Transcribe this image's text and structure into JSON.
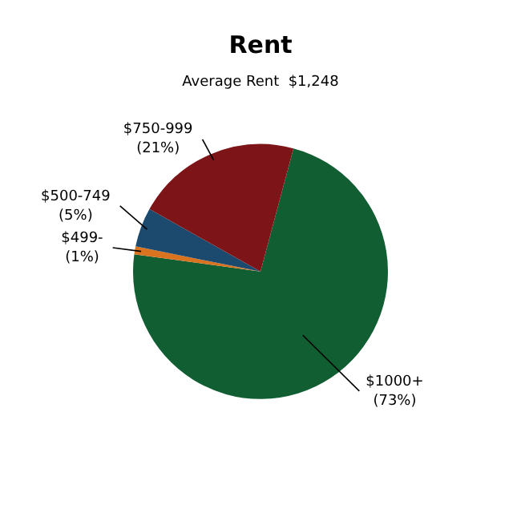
{
  "chart_data": {
    "type": "pie",
    "title": "Rent",
    "subtitle": "Average Rent  $1,248",
    "categories": [
      "$1000+",
      "$499-",
      "$500-749",
      "$750-999"
    ],
    "values": [
      73,
      1,
      5,
      21
    ],
    "colors": [
      "#125e33",
      "#d9731f",
      "#1c4a6e",
      "#7d1418"
    ],
    "value_labels": [
      "(73%)",
      "(1%)",
      "(5%)",
      "(21%)"
    ],
    "legend": false
  }
}
